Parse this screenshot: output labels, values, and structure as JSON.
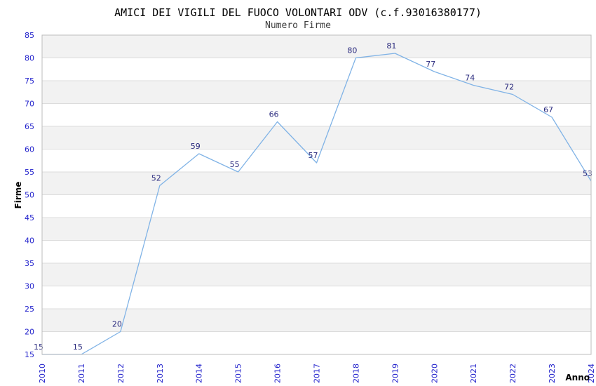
{
  "chart_data": {
    "type": "line",
    "title": "AMICI DEI VIGILI DEL FUOCO VOLONTARI ODV (c.f.93016380177)",
    "subtitle": "Numero Firme",
    "xlabel": "Anno",
    "ylabel": "Firme",
    "categories": [
      "2010",
      "2011",
      "2012",
      "2013",
      "2014",
      "2015",
      "2016",
      "2017",
      "2018",
      "2019",
      "2020",
      "2021",
      "2022",
      "2023",
      "2024"
    ],
    "values": [
      15,
      15,
      20,
      52,
      59,
      55,
      66,
      57,
      80,
      81,
      77,
      74,
      72,
      67,
      53
    ],
    "ylim": [
      15,
      85
    ],
    "ytick_step": 5,
    "legend": "none",
    "grid": "horizontal-only",
    "alternating_bands": true,
    "x_tick_rotation": 90,
    "colors": {
      "line": "#80b3e6",
      "tick_label": "#2323cc",
      "data_label": "#29297d",
      "title": "#000000",
      "subtitle": "#3c3c3c",
      "axis_title": "#000000",
      "band": "#f2f2f2",
      "gridline": "#dcdcdc",
      "border": "#bdbdbd",
      "background": "#ffffff"
    }
  }
}
